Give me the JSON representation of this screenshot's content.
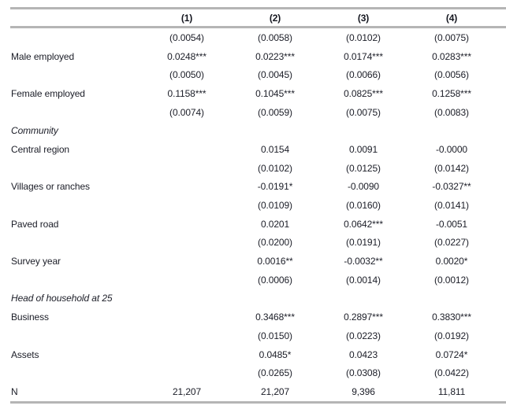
{
  "colors": {
    "background": "#ffffff",
    "text": "#1b1d27",
    "header_text": "#14161f",
    "rule": "#b5b5b5"
  },
  "table": {
    "columns": [
      "(1)",
      "(2)",
      "(3)",
      "(4)"
    ],
    "rows": [
      {
        "type": "se",
        "label": "",
        "values": [
          "(0.0054)",
          "(0.0058)",
          "(0.0102)",
          "(0.0075)"
        ]
      },
      {
        "type": "coef",
        "label": "Male employed",
        "values": [
          "0.0248***",
          "0.0223***",
          "0.0174***",
          "0.0283***"
        ]
      },
      {
        "type": "se",
        "label": "",
        "values": [
          "(0.0050)",
          "(0.0045)",
          "(0.0066)",
          "(0.0056)"
        ]
      },
      {
        "type": "coef",
        "label": "Female employed",
        "values": [
          "0.1158***",
          "0.1045***",
          "0.0825***",
          "0.1258***"
        ]
      },
      {
        "type": "se",
        "label": "",
        "values": [
          "(0.0074)",
          "(0.0059)",
          "(0.0075)",
          "(0.0083)"
        ]
      },
      {
        "type": "section",
        "label": "Community",
        "values": [
          "",
          "",
          "",
          ""
        ]
      },
      {
        "type": "coef",
        "label": "Central region",
        "values": [
          "",
          "0.0154",
          "0.0091",
          "-0.0000"
        ]
      },
      {
        "type": "se",
        "label": "",
        "values": [
          "",
          "(0.0102)",
          "(0.0125)",
          "(0.0142)"
        ]
      },
      {
        "type": "coef",
        "label": "Villages or ranches",
        "values": [
          "",
          "-0.0191*",
          "-0.0090",
          "-0.0327**"
        ]
      },
      {
        "type": "se",
        "label": "",
        "values": [
          "",
          "(0.0109)",
          "(0.0160)",
          "(0.0141)"
        ]
      },
      {
        "type": "coef",
        "label": "Paved road",
        "values": [
          "",
          "0.0201",
          "0.0642***",
          "-0.0051"
        ]
      },
      {
        "type": "se",
        "label": "",
        "values": [
          "",
          "(0.0200)",
          "(0.0191)",
          "(0.0227)"
        ]
      },
      {
        "type": "coef",
        "label": "Survey year",
        "values": [
          "",
          "0.0016**",
          "-0.0032**",
          "0.0020*"
        ]
      },
      {
        "type": "se",
        "label": "",
        "values": [
          "",
          "(0.0006)",
          "(0.0014)",
          "(0.0012)"
        ]
      },
      {
        "type": "section",
        "label": "Head of household at 25",
        "values": [
          "",
          "",
          "",
          ""
        ]
      },
      {
        "type": "coef",
        "label": "Business",
        "values": [
          "",
          "0.3468***",
          "0.2897***",
          "0.3830***"
        ]
      },
      {
        "type": "se",
        "label": "",
        "values": [
          "",
          "(0.0150)",
          "(0.0223)",
          "(0.0192)"
        ]
      },
      {
        "type": "coef",
        "label": "Assets",
        "values": [
          "",
          "0.0485*",
          "0.0423",
          "0.0724*"
        ]
      },
      {
        "type": "se",
        "label": "",
        "values": [
          "",
          "(0.0265)",
          "(0.0308)",
          "(0.0422)"
        ]
      },
      {
        "type": "coef",
        "label": "N",
        "values": [
          "21,207",
          "21,207",
          "9,396",
          "11,811"
        ]
      }
    ]
  }
}
